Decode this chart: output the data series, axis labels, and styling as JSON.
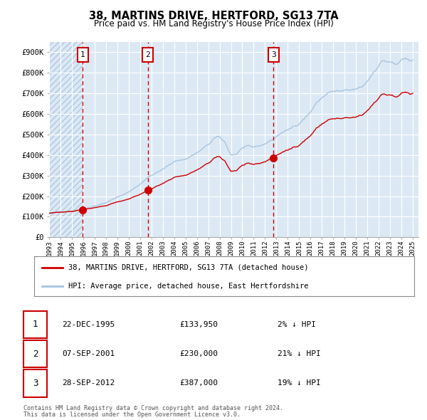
{
  "title": "38, MARTINS DRIVE, HERTFORD, SG13 7TA",
  "subtitle": "Price paid vs. HM Land Registry's House Price Index (HPI)",
  "legend_property": "38, MARTINS DRIVE, HERTFORD, SG13 7TA (detached house)",
  "legend_hpi": "HPI: Average price, detached house, East Hertfordshire",
  "footer1": "Contains HM Land Registry data © Crown copyright and database right 2024.",
  "footer2": "This data is licensed under the Open Government Licence v3.0.",
  "sale_dates": [
    "22-DEC-1995",
    "07-SEP-2001",
    "28-SEP-2012"
  ],
  "sale_prices": [
    133950,
    230000,
    387000
  ],
  "sale_labels": [
    "1",
    "2",
    "3"
  ],
  "sale_hpi_pct": [
    "2% ↓ HPI",
    "21% ↓ HPI",
    "19% ↓ HPI"
  ],
  "sale_years": [
    1995.97,
    2001.68,
    2012.75
  ],
  "hpi_color": "#a8c4e0",
  "price_color": "#cc0000",
  "dot_color": "#cc0000",
  "vline_color": "#cc0000",
  "bg_color": "#dce9f5",
  "grid_color": "#ffffff",
  "ylim": [
    0,
    950000
  ],
  "yticks": [
    0,
    100000,
    200000,
    300000,
    400000,
    500000,
    600000,
    700000,
    800000,
    900000
  ],
  "ytick_labels": [
    "£0",
    "£100K",
    "£200K",
    "£300K",
    "£400K",
    "£500K",
    "£600K",
    "£700K",
    "£800K",
    "£900K"
  ],
  "xlim_start": 1993.0,
  "xlim_end": 2025.5
}
